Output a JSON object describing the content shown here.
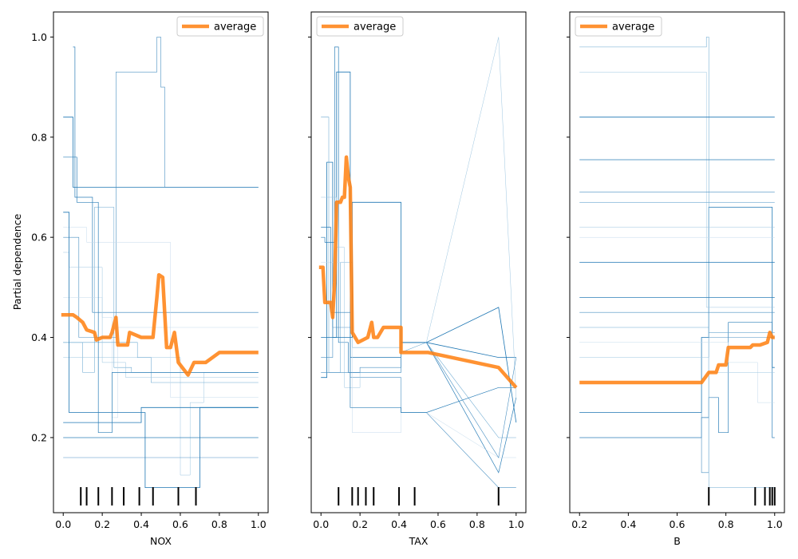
{
  "figure": {
    "ylabel": "Partial dependence"
  },
  "chart_data": [
    {
      "type": "line",
      "xlabel": "NOX",
      "xlim": [
        -0.05,
        1.05
      ],
      "ylim": [
        0.05,
        1.05
      ],
      "xticks": [
        "0.0",
        "0.2",
        "0.4",
        "0.6",
        "0.8",
        "1.0"
      ],
      "yticks": [
        "0.2",
        "0.4",
        "0.6",
        "0.8",
        "1.0"
      ],
      "legend": {
        "label": "average",
        "position": "top-right"
      },
      "average": {
        "x": [
          -0.01,
          0.05,
          0.07,
          0.1,
          0.12,
          0.16,
          0.17,
          0.2,
          0.24,
          0.25,
          0.27,
          0.28,
          0.33,
          0.34,
          0.4,
          0.46,
          0.48,
          0.49,
          0.51,
          0.53,
          0.55,
          0.57,
          0.59,
          0.61,
          0.64,
          0.67,
          0.73,
          0.8,
          1.0
        ],
        "y": [
          0.445,
          0.445,
          0.44,
          0.43,
          0.415,
          0.41,
          0.395,
          0.4,
          0.4,
          0.41,
          0.44,
          0.385,
          0.385,
          0.41,
          0.4,
          0.4,
          0.48,
          0.525,
          0.52,
          0.38,
          0.38,
          0.41,
          0.35,
          0.34,
          0.325,
          0.35,
          0.35,
          0.37,
          0.37
        ]
      },
      "ice_lines": [
        {
          "x": [
            0.0,
            0.05,
            0.05,
            1.0
          ],
          "y": [
            0.84,
            0.84,
            0.7,
            0.7
          ]
        },
        {
          "x": [
            0.05,
            0.06,
            0.06,
            0.15,
            0.15,
            1.0
          ],
          "y": [
            0.98,
            0.98,
            0.68,
            0.68,
            0.45,
            0.45
          ]
        },
        {
          "x": [
            0.0,
            0.08,
            0.08,
            0.27,
            0.27,
            0.48,
            0.48,
            0.5,
            0.5,
            0.52,
            0.52,
            1.0
          ],
          "y": [
            0.6,
            0.6,
            0.4,
            0.4,
            0.93,
            0.93,
            1.0,
            1.0,
            0.9,
            0.9,
            0.7,
            0.7
          ]
        },
        {
          "x": [
            0.0,
            0.1,
            0.1,
            0.16,
            0.16,
            0.26,
            0.26,
            0.35,
            0.35,
            1.0
          ],
          "y": [
            0.39,
            0.39,
            0.33,
            0.33,
            0.66,
            0.66,
            0.34,
            0.34,
            0.33,
            0.33
          ]
        },
        {
          "x": [
            0.0,
            0.3,
            0.3,
            0.6,
            0.6,
            0.65,
            0.65,
            0.72,
            0.72,
            1.0
          ],
          "y": [
            0.36,
            0.36,
            0.36,
            0.36,
            0.125,
            0.125,
            0.27,
            0.27,
            0.33,
            0.33
          ]
        },
        {
          "x": [
            0.0,
            0.2,
            0.2,
            0.25,
            0.25,
            0.28,
            0.28,
            0.34,
            0.34,
            1.0
          ],
          "y": [
            0.48,
            0.48,
            0.44,
            0.44,
            0.24,
            0.24,
            0.42,
            0.42,
            0.42,
            0.42
          ]
        },
        {
          "x": [
            0.0,
            0.4,
            0.4,
            1.0
          ],
          "y": [
            0.23,
            0.23,
            0.26,
            0.26
          ]
        },
        {
          "x": [
            0.0,
            1.0
          ],
          "y": [
            0.2,
            0.2
          ]
        },
        {
          "x": [
            0.0,
            1.0
          ],
          "y": [
            0.16,
            0.16
          ]
        },
        {
          "x": [
            0.0,
            0.38,
            0.38,
            0.45,
            0.45,
            1.0
          ],
          "y": [
            0.39,
            0.39,
            0.36,
            0.36,
            0.31,
            0.31
          ]
        },
        {
          "x": [
            0.0,
            0.03,
            0.03,
            0.2,
            0.2,
            0.32,
            0.32,
            1.0
          ],
          "y": [
            0.57,
            0.57,
            0.54,
            0.54,
            0.35,
            0.35,
            0.32,
            0.32
          ]
        },
        {
          "x": [
            0.0,
            0.12,
            0.12,
            0.55,
            0.55,
            1.0
          ],
          "y": [
            0.62,
            0.62,
            0.59,
            0.59,
            0.28,
            0.28
          ]
        },
        {
          "x": [
            0.0,
            0.03,
            0.03,
            0.42,
            0.42,
            0.7,
            0.7,
            1.0
          ],
          "y": [
            0.65,
            0.65,
            0.25,
            0.25,
            0.1,
            0.1,
            0.26,
            0.26
          ]
        },
        {
          "x": [
            0.0,
            0.07,
            0.07,
            0.18,
            0.18,
            0.25,
            0.25,
            1.0
          ],
          "y": [
            0.76,
            0.76,
            0.67,
            0.67,
            0.21,
            0.21,
            0.33,
            0.33
          ]
        }
      ],
      "rug": [
        0.09,
        0.12,
        0.18,
        0.25,
        0.31,
        0.39,
        0.46,
        0.59,
        0.68
      ]
    },
    {
      "type": "line",
      "xlabel": "TAX",
      "xlim": [
        -0.05,
        1.05
      ],
      "ylim": [
        0.05,
        1.05
      ],
      "xticks": [
        "0.0",
        "0.2",
        "0.4",
        "0.6",
        "0.8",
        "1.0"
      ],
      "yticks": [
        "0.2",
        "0.4",
        "0.6",
        "0.8",
        "1.0"
      ],
      "legend": {
        "label": "average",
        "position": "top-left"
      },
      "average": {
        "x": [
          -0.01,
          0.01,
          0.02,
          0.05,
          0.06,
          0.07,
          0.08,
          0.1,
          0.11,
          0.12,
          0.13,
          0.14,
          0.15,
          0.16,
          0.19,
          0.24,
          0.26,
          0.27,
          0.29,
          0.32,
          0.34,
          0.41,
          0.41,
          0.55,
          0.91,
          1.0
        ],
        "y": [
          0.54,
          0.54,
          0.47,
          0.47,
          0.44,
          0.51,
          0.67,
          0.67,
          0.68,
          0.68,
          0.76,
          0.72,
          0.7,
          0.41,
          0.39,
          0.4,
          0.43,
          0.4,
          0.4,
          0.42,
          0.42,
          0.42,
          0.37,
          0.37,
          0.34,
          0.3
        ]
      },
      "ice_lines": [
        {
          "x": [
            0.0,
            0.03,
            0.03,
            0.06,
            0.06,
            0.08,
            0.08,
            0.15,
            0.15,
            0.41,
            0.41,
            0.54,
            0.91,
            1.0
          ],
          "y": [
            0.32,
            0.32,
            0.75,
            0.75,
            0.4,
            0.4,
            0.93,
            0.93,
            0.36,
            0.36,
            0.39,
            0.39,
            0.36,
            0.36
          ]
        },
        {
          "x": [
            0.0,
            0.02,
            0.02,
            0.07,
            0.07,
            0.09,
            0.09,
            0.14,
            0.14,
            0.41,
            0.41,
            0.54,
            0.91,
            1.0
          ],
          "y": [
            0.6,
            0.6,
            0.59,
            0.59,
            0.98,
            0.98,
            0.39,
            0.39,
            0.33,
            0.33,
            0.39,
            0.39,
            0.13,
            0.28
          ]
        },
        {
          "x": [
            0.0,
            0.06,
            0.06,
            0.15,
            0.15,
            0.41,
            0.41,
            0.54,
            0.91,
            1.0
          ],
          "y": [
            0.36,
            0.36,
            0.42,
            0.42,
            0.32,
            0.32,
            0.25,
            0.25,
            0.1,
            0.1
          ]
        },
        {
          "x": [
            0.0,
            0.04,
            0.04,
            0.1,
            0.1,
            0.16,
            0.16,
            0.41,
            0.41,
            0.54,
            0.91,
            1.0
          ],
          "y": [
            0.84,
            0.84,
            0.33,
            0.33,
            0.55,
            0.55,
            0.38,
            0.38,
            0.37,
            0.39,
            0.2,
            0.2
          ]
        },
        {
          "x": [
            0.0,
            0.08,
            0.08,
            0.12,
            0.12,
            0.2,
            0.2,
            0.41,
            0.41,
            0.54,
            0.91,
            1.0
          ],
          "y": [
            0.68,
            0.68,
            0.58,
            0.58,
            0.3,
            0.3,
            0.33,
            0.33,
            0.39,
            0.39,
            1.0,
            0.28
          ]
        },
        {
          "x": [
            0.0,
            0.16,
            0.16,
            0.41,
            0.41,
            0.54,
            0.91,
            1.0
          ],
          "y": [
            0.55,
            0.55,
            0.21,
            0.21,
            0.25,
            0.25,
            0.16,
            0.16
          ]
        },
        {
          "x": [
            0.0,
            0.16,
            0.16,
            0.41,
            0.41,
            0.54,
            0.91,
            1.0
          ],
          "y": [
            0.4,
            0.4,
            0.67,
            0.67,
            0.39,
            0.39,
            0.46,
            0.23
          ]
        },
        {
          "x": [
            0.0,
            0.05,
            0.05,
            0.15,
            0.15,
            0.41,
            0.41,
            0.54,
            0.91,
            1.0
          ],
          "y": [
            0.62,
            0.62,
            0.45,
            0.45,
            0.26,
            0.26,
            0.25,
            0.25,
            0.3,
            0.3
          ]
        },
        {
          "x": [
            0.0,
            0.2,
            0.2,
            0.41,
            0.41,
            0.54,
            0.91,
            1.0
          ],
          "y": [
            0.33,
            0.33,
            0.34,
            0.34,
            0.39,
            0.39,
            0.16,
            0.36
          ]
        }
      ],
      "rug": [
        0.09,
        0.16,
        0.19,
        0.23,
        0.27,
        0.4,
        0.48,
        0.91
      ]
    },
    {
      "type": "line",
      "xlabel": "B",
      "xlim": [
        0.16,
        1.04
      ],
      "ylim": [
        0.05,
        1.05
      ],
      "xticks": [
        "0.2",
        "0.4",
        "0.6",
        "0.8",
        "1.0"
      ],
      "yticks": [
        "0.2",
        "0.4",
        "0.6",
        "0.8",
        "1.0"
      ],
      "legend": {
        "label": "average",
        "position": "top-left"
      },
      "average": {
        "x": [
          0.2,
          0.69,
          0.7,
          0.73,
          0.76,
          0.77,
          0.8,
          0.81,
          0.9,
          0.91,
          0.94,
          0.97,
          0.98,
          0.99,
          1.0
        ],
        "y": [
          0.31,
          0.31,
          0.31,
          0.33,
          0.33,
          0.345,
          0.345,
          0.38,
          0.38,
          0.385,
          0.385,
          0.39,
          0.41,
          0.4,
          0.4
        ]
      },
      "ice_lines": [
        {
          "x": [
            0.2,
            0.7,
            0.7,
            0.73,
            0.73,
            0.99,
            0.99,
            1.0
          ],
          "y": [
            0.25,
            0.25,
            0.4,
            0.4,
            0.66,
            0.66,
            0.34,
            0.34
          ]
        },
        {
          "x": [
            0.2,
            0.7,
            0.7,
            0.73,
            0.73,
            0.77,
            0.77,
            0.81,
            0.81,
            0.99,
            0.99,
            1.0
          ],
          "y": [
            0.2,
            0.2,
            0.24,
            0.24,
            0.28,
            0.28,
            0.21,
            0.21,
            0.43,
            0.43,
            0.2,
            0.2
          ]
        },
        {
          "x": [
            0.2,
            0.7,
            0.7,
            0.73,
            0.73,
            1.0
          ],
          "y": [
            0.25,
            0.25,
            0.13,
            0.13,
            0.4,
            0.4
          ]
        },
        {
          "x": [
            0.2,
            0.72,
            0.72,
            0.73,
            0.73,
            1.0
          ],
          "y": [
            0.98,
            0.98,
            1.0,
            1.0,
            0.1,
            0.1
          ]
        },
        {
          "x": [
            0.2,
            0.72,
            0.72,
            1.0
          ],
          "y": [
            0.93,
            0.93,
            0.46,
            0.46
          ]
        },
        {
          "x": [
            0.2,
            0.81,
            0.81,
            0.93,
            0.93,
            1.0
          ],
          "y": [
            0.39,
            0.39,
            0.35,
            0.35,
            0.27,
            0.27
          ]
        },
        {
          "x": [
            0.2,
            1.0
          ],
          "y": [
            0.84,
            0.84
          ]
        },
        {
          "x": [
            0.2,
            1.0
          ],
          "y": [
            0.755,
            0.755
          ]
        },
        {
          "x": [
            0.2,
            1.0
          ],
          "y": [
            0.69,
            0.69
          ]
        },
        {
          "x": [
            0.2,
            1.0
          ],
          "y": [
            0.67,
            0.67
          ]
        },
        {
          "x": [
            0.2,
            1.0
          ],
          "y": [
            0.62,
            0.62
          ]
        },
        {
          "x": [
            0.2,
            1.0
          ],
          "y": [
            0.6,
            0.6
          ]
        },
        {
          "x": [
            0.2,
            1.0
          ],
          "y": [
            0.55,
            0.55
          ]
        },
        {
          "x": [
            0.2,
            1.0
          ],
          "y": [
            0.48,
            0.48
          ]
        },
        {
          "x": [
            0.2,
            1.0
          ],
          "y": [
            0.45,
            0.45
          ]
        },
        {
          "x": [
            0.2,
            0.73,
            0.73,
            1.0
          ],
          "y": [
            0.42,
            0.42,
            0.41,
            0.41
          ]
        },
        {
          "x": [
            0.2,
            0.73,
            0.73,
            1.0
          ],
          "y": [
            0.36,
            0.36,
            0.33,
            0.33
          ]
        }
      ],
      "rug": [
        0.73,
        0.92,
        0.96,
        0.98,
        0.99,
        1.0
      ]
    }
  ]
}
